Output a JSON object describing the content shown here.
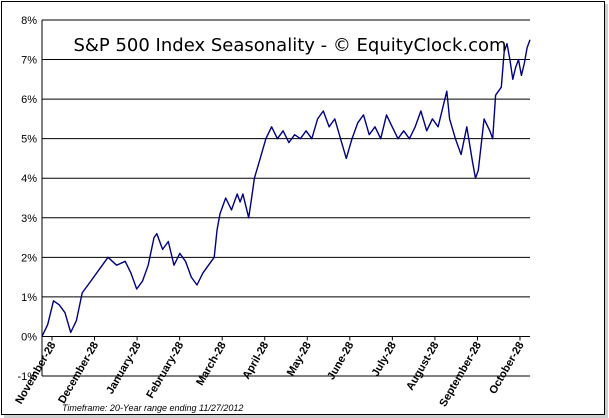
{
  "chart_data": {
    "type": "line",
    "title": "S&P 500 Index Seasonality - © EquityClock.com",
    "footnote": "Timeframe: 20-Year range ending 11/27/2012",
    "xlabel": "",
    "ylabel": "",
    "ylim": [
      -1,
      8
    ],
    "y_ticks": [
      "-1%",
      "0%",
      "1%",
      "2%",
      "3%",
      "4%",
      "5%",
      "6%",
      "7%",
      "8%"
    ],
    "x_ticks": [
      "November-28",
      "December-28",
      "January-28",
      "February-28",
      "March-28",
      "April-28",
      "May-28",
      "June-28",
      "July-28",
      "August-28",
      "September-28",
      "October-28"
    ],
    "grid": true,
    "legend": "none",
    "line_color": "#000080",
    "series": [
      {
        "values": [
          [
            0,
            0.0
          ],
          [
            2,
            0.3
          ],
          [
            4,
            0.9
          ],
          [
            6,
            0.8
          ],
          [
            8,
            0.6
          ],
          [
            10,
            0.1
          ],
          [
            12,
            0.4
          ],
          [
            14,
            1.1
          ],
          [
            17,
            1.4
          ],
          [
            20,
            1.7
          ],
          [
            23,
            2.0
          ],
          [
            26,
            1.8
          ],
          [
            29,
            1.9
          ],
          [
            31,
            1.6
          ],
          [
            33,
            1.2
          ],
          [
            35,
            1.4
          ],
          [
            37,
            1.8
          ],
          [
            39,
            2.5
          ],
          [
            40,
            2.6
          ],
          [
            42,
            2.2
          ],
          [
            44,
            2.4
          ],
          [
            46,
            1.8
          ],
          [
            48,
            2.1
          ],
          [
            50,
            1.9
          ],
          [
            52,
            1.5
          ],
          [
            54,
            1.3
          ],
          [
            56,
            1.6
          ],
          [
            58,
            1.8
          ],
          [
            60,
            2.0
          ],
          [
            61,
            2.7
          ],
          [
            62,
            3.1
          ],
          [
            64,
            3.5
          ],
          [
            66,
            3.2
          ],
          [
            68,
            3.6
          ],
          [
            69,
            3.4
          ],
          [
            70,
            3.6
          ],
          [
            71,
            3.3
          ],
          [
            72,
            3.0
          ],
          [
            73,
            3.5
          ],
          [
            74,
            4.0
          ],
          [
            76,
            4.5
          ],
          [
            78,
            5.0
          ],
          [
            80,
            5.3
          ],
          [
            82,
            5.0
          ],
          [
            84,
            5.2
          ],
          [
            86,
            4.9
          ],
          [
            88,
            5.1
          ],
          [
            90,
            5.0
          ],
          [
            92,
            5.2
          ],
          [
            94,
            5.0
          ],
          [
            96,
            5.5
          ],
          [
            98,
            5.7
          ],
          [
            100,
            5.3
          ],
          [
            102,
            5.5
          ],
          [
            104,
            5.0
          ],
          [
            106,
            4.5
          ],
          [
            108,
            5.0
          ],
          [
            110,
            5.4
          ],
          [
            112,
            5.6
          ],
          [
            114,
            5.1
          ],
          [
            116,
            5.3
          ],
          [
            118,
            5.0
          ],
          [
            120,
            5.6
          ],
          [
            122,
            5.3
          ],
          [
            124,
            5.0
          ],
          [
            126,
            5.2
          ],
          [
            128,
            5.0
          ],
          [
            130,
            5.3
          ],
          [
            132,
            5.7
          ],
          [
            134,
            5.2
          ],
          [
            136,
            5.5
          ],
          [
            138,
            5.3
          ],
          [
            140,
            5.9
          ],
          [
            141,
            6.2
          ],
          [
            142,
            5.5
          ],
          [
            144,
            5.0
          ],
          [
            146,
            4.6
          ],
          [
            148,
            5.3
          ],
          [
            150,
            4.4
          ],
          [
            151,
            4.0
          ],
          [
            152,
            4.2
          ],
          [
            154,
            5.5
          ],
          [
            156,
            5.2
          ],
          [
            157,
            5.0
          ],
          [
            158,
            6.1
          ],
          [
            160,
            6.3
          ],
          [
            161,
            7.2
          ],
          [
            162,
            7.4
          ],
          [
            163,
            7.0
          ],
          [
            164,
            6.5
          ],
          [
            165,
            6.8
          ],
          [
            166,
            7.0
          ],
          [
            167,
            6.6
          ],
          [
            168,
            6.9
          ],
          [
            169,
            7.3
          ],
          [
            170,
            7.5
          ]
        ]
      }
    ],
    "x_range": [
      0,
      170
    ]
  }
}
